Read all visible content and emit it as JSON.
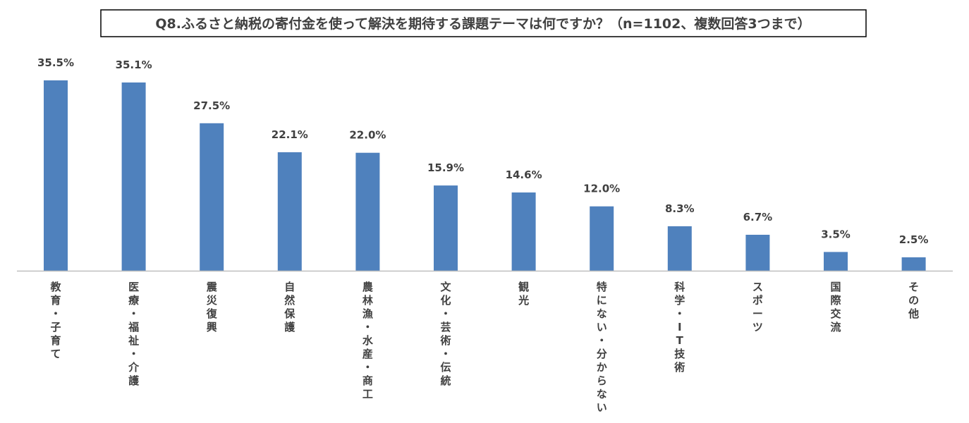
{
  "chart_data": {
    "type": "bar",
    "title": "Q8.ふるさと納税の寄付金を使って解決を期待する課題テーマは何ですか？（n=1102、複数回答3つまで）",
    "categories": [
      "教育・子育て",
      "医療・福祉・介護",
      "震災復興",
      "自然保護",
      "農林漁・水産・商工",
      "文化・芸術・伝統",
      "観光",
      "特にない・分からない",
      "科学・IT技術",
      "スポーツ",
      "国際交流",
      "その他"
    ],
    "values": [
      35.5,
      35.1,
      27.5,
      22.1,
      22.0,
      15.9,
      14.6,
      12.0,
      8.3,
      6.7,
      3.5,
      2.5
    ],
    "labels": [
      "35.5%",
      "35.1%",
      "27.5%",
      "22.1%",
      "22.0%",
      "15.9%",
      "14.6%",
      "12.0%",
      "8.3%",
      "6.7%",
      "3.5%",
      "2.5%"
    ],
    "ylim": [
      0,
      35.5
    ],
    "xlabel": "",
    "ylabel": "",
    "grid": false,
    "legend": "none",
    "bar_color": "#4f81bd"
  }
}
